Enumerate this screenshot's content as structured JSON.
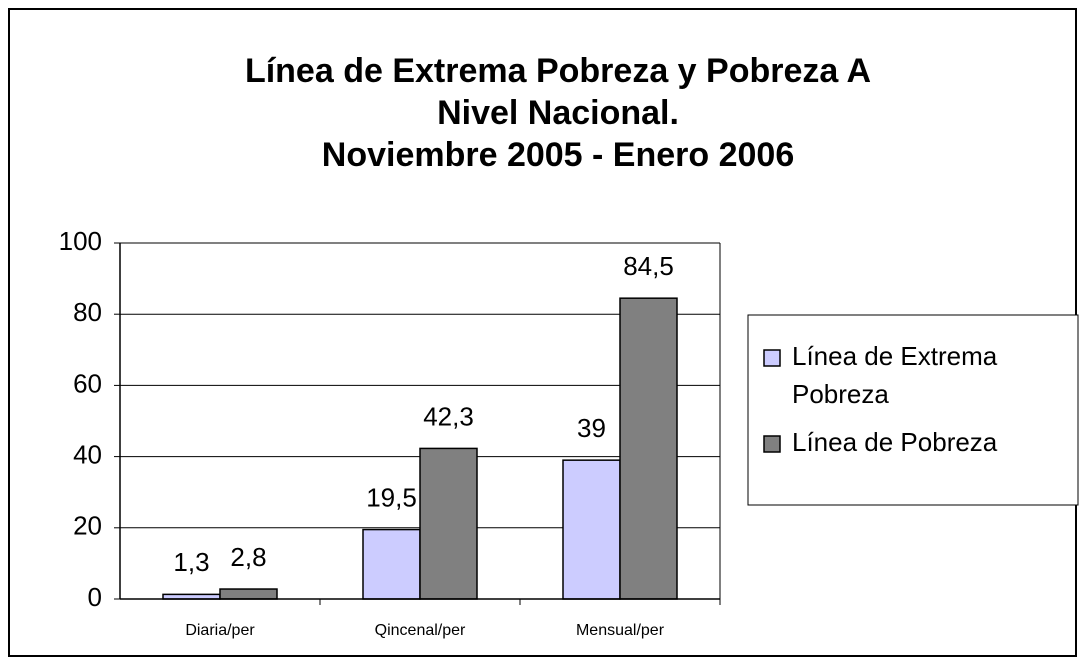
{
  "chart_data": {
    "type": "bar",
    "title": [
      "Línea de Extrema Pobreza y Pobreza A",
      "Nivel Nacional.",
      "Noviembre 2005 - Enero 2006"
    ],
    "categories": [
      "Diaria/per",
      "Qincenal/per",
      "Mensual/per"
    ],
    "series": [
      {
        "name": "Línea de Extrema Pobreza",
        "color": "#ccccff",
        "values": [
          1.3,
          19.5,
          39
        ],
        "value_labels": [
          "1,3",
          "19,5",
          "39"
        ]
      },
      {
        "name": "Línea de Pobreza",
        "color": "#808080",
        "values": [
          2.8,
          42.3,
          84.5
        ],
        "value_labels": [
          "2,8",
          "42,3",
          "84,5"
        ]
      }
    ],
    "ylim": [
      0,
      100
    ],
    "yticks": [
      0,
      20,
      40,
      60,
      80,
      100
    ],
    "grid": true,
    "legend": "right"
  }
}
